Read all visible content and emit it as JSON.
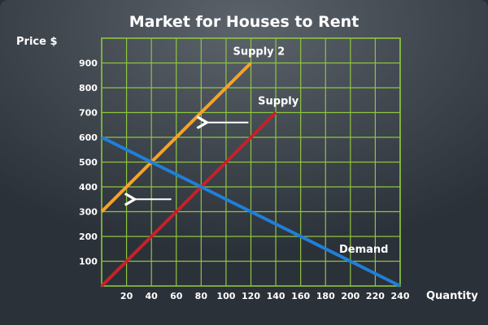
{
  "chart_data": {
    "type": "line",
    "title": "Market for Houses to Rent",
    "ylabel": "Price $",
    "xlabel": "Quantity",
    "xlim": [
      0,
      240
    ],
    "ylim": [
      0,
      1000
    ],
    "x_ticks": [
      20,
      40,
      60,
      80,
      100,
      120,
      140,
      160,
      180,
      200,
      220,
      240
    ],
    "y_ticks": [
      100,
      200,
      300,
      400,
      500,
      600,
      700,
      800,
      900
    ],
    "grid": true,
    "grid_color": "#8dc63f",
    "series": [
      {
        "name": "Supply 2",
        "color": "#f7a22b",
        "points": [
          [
            0,
            300
          ],
          [
            120,
            900
          ]
        ]
      },
      {
        "name": "Supply",
        "color": "#c8202a",
        "points": [
          [
            0,
            0
          ],
          [
            140,
            700
          ]
        ]
      },
      {
        "name": "Demand",
        "color": "#1f7fd8",
        "points": [
          [
            0,
            600
          ],
          [
            240,
            0
          ]
        ]
      }
    ],
    "annotations": [
      {
        "type": "arrow",
        "direction": "left",
        "color": "#ffffff",
        "from": [
          118,
          660
        ],
        "to": [
          82,
          660
        ]
      },
      {
        "type": "arrow",
        "direction": "left",
        "color": "#ffffff",
        "from": [
          56,
          350
        ],
        "to": [
          24,
          350
        ]
      }
    ]
  }
}
